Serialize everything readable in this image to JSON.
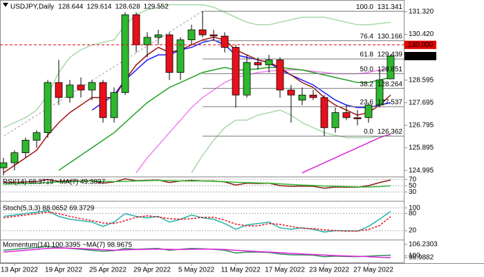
{
  "chart_data": [
    {
      "type": "candlestick",
      "title": "USDJPY,Daily",
      "categories": [
        null,
        "13 Apr 2022",
        null,
        null,
        null,
        "19 Apr 2022",
        null,
        null,
        null,
        "25 Apr 2022",
        null,
        null,
        null,
        "29 Apr 2022",
        null,
        null,
        null,
        "5 May 2022",
        null,
        null,
        null,
        "11 May 2022",
        null,
        null,
        null,
        "17 May 2022",
        null,
        null,
        null,
        "23 May 2022",
        null,
        null,
        null,
        "27 May 2022",
        null,
        null
      ],
      "open": [
        125.1,
        125.3,
        125.7,
        126.2,
        126.5,
        128.5,
        127.9,
        128.4,
        128.2,
        128.5,
        127.1,
        128.1,
        131.2,
        130.0,
        130.3,
        130.4,
        128.9,
        130.2,
        130.6,
        130.4,
        130.35,
        129.9,
        128.0,
        129.3,
        129.2,
        129.4,
        128.2,
        127.8,
        128.0,
        127.9,
        126.7,
        127.3,
        127.1,
        127.1,
        127.6,
        128.644
      ],
      "high": [
        125.5,
        125.8,
        126.3,
        126.6,
        128.6,
        129.4,
        128.6,
        128.7,
        128.6,
        128.6,
        128.3,
        131.3,
        131.3,
        130.5,
        130.6,
        130.5,
        130.3,
        130.8,
        131.341,
        130.6,
        130.5,
        130.0,
        129.6,
        129.5,
        129.6,
        129.5,
        128.4,
        128.3,
        128.2,
        128.0,
        127.5,
        127.6,
        127.4,
        127.7,
        129.0,
        129.614
      ],
      "low": [
        124.8,
        125.0,
        125.5,
        125.9,
        126.3,
        127.6,
        127.7,
        127.9,
        127.8,
        126.9,
        126.9,
        128.0,
        129.7,
        129.5,
        130.0,
        128.6,
        128.6,
        130.0,
        130.3,
        130.2,
        129.7,
        127.5,
        127.9,
        129.0,
        128.9,
        127.9,
        126.9,
        127.6,
        127.8,
        126.362,
        126.5,
        127.0,
        126.8,
        126.9,
        127.5,
        128.628
      ],
      "close": [
        125.3,
        125.7,
        126.2,
        126.5,
        128.5,
        127.9,
        128.4,
        128.2,
        128.5,
        127.1,
        128.1,
        131.2,
        130.0,
        130.3,
        130.4,
        128.9,
        130.2,
        130.6,
        130.4,
        130.35,
        129.9,
        128.0,
        129.3,
        129.2,
        129.4,
        128.2,
        128.0,
        128.0,
        127.9,
        126.7,
        127.3,
        127.1,
        127.05,
        127.6,
        128.6,
        129.552
      ],
      "up_color": "#2eb82e",
      "down_color": "#e8101a",
      "series": [
        {
          "color": "#a8d8a8",
          "values": [
            126.7,
            126.9,
            127.1,
            127.4,
            128.0,
            128.9,
            129.5,
            129.8,
            130.0,
            130.1,
            130.2,
            130.8,
            131.2,
            131.4,
            131.5,
            131.6,
            131.6,
            131.6,
            131.6,
            131.5,
            131.3,
            131.1,
            130.9,
            130.8,
            130.8,
            130.9,
            131.0,
            131.1,
            131.1,
            131.1,
            131.0,
            130.9,
            130.8,
            130.8,
            130.85,
            130.9
          ]
        },
        {
          "color": "#a8d8a8",
          "values": [
            null,
            null,
            null,
            null,
            null,
            null,
            null,
            null,
            null,
            null,
            null,
            null,
            null,
            null,
            null,
            null,
            null,
            124.9,
            125.6,
            126.2,
            126.7,
            127.0,
            127.0,
            127.2,
            127.3,
            127.4,
            127.2,
            126.9,
            126.7,
            126.5,
            126.4,
            126.3,
            126.3,
            126.3,
            126.35,
            126.4
          ]
        },
        {
          "color": "#ee82ee",
          "values": [
            null,
            null,
            null,
            null,
            null,
            null,
            null,
            null,
            null,
            null,
            null,
            null,
            124.9,
            125.5,
            126.0,
            126.5,
            127.0,
            127.5,
            127.9,
            128.2,
            128.5,
            128.7,
            128.8,
            128.9,
            128.95,
            129.0,
            129.0,
            129.0,
            128.95,
            128.9,
            128.85,
            128.85,
            128.85,
            128.9,
            129.0,
            129.05
          ]
        },
        {
          "color": "#dd22dd",
          "values": [
            null,
            null,
            null,
            null,
            null,
            null,
            null,
            null,
            null,
            null,
            null,
            null,
            null,
            null,
            null,
            null,
            null,
            null,
            null,
            null,
            null,
            null,
            null,
            null,
            null,
            null,
            null,
            124.9,
            125.1,
            125.3,
            125.5,
            125.7,
            125.9,
            126.1,
            126.3,
            126.45
          ]
        },
        {
          "color": "#22a022",
          "values": [
            null,
            null,
            null,
            null,
            null,
            125.0,
            125.3,
            125.6,
            125.9,
            126.2,
            126.5,
            126.9,
            127.3,
            127.7,
            128.0,
            128.3,
            128.5,
            128.7,
            128.9,
            129.0,
            129.1,
            129.0,
            129.0,
            129.05,
            129.1,
            129.1,
            129.05,
            129.0,
            128.9,
            128.8,
            128.7,
            128.6,
            128.5,
            128.5,
            128.6,
            128.7
          ]
        },
        {
          "color": "#1a1aff",
          "values": [
            null,
            null,
            null,
            null,
            null,
            null,
            null,
            null,
            127.4,
            127.7,
            128.0,
            128.6,
            129.0,
            129.4,
            129.6,
            129.6,
            129.8,
            129.9,
            130.1,
            130.2,
            130.0,
            129.6,
            129.5,
            129.4,
            129.3,
            129.0,
            128.8,
            128.6,
            128.4,
            128.1,
            127.8,
            127.6,
            127.5,
            127.5,
            127.6,
            127.7
          ]
        },
        {
          "color": "#a01010",
          "values": [
            124.9,
            125.2,
            125.5,
            125.8,
            126.4,
            126.9,
            127.3,
            127.6,
            127.9,
            127.9,
            127.9,
            128.6,
            129.2,
            129.6,
            129.9,
            129.7,
            129.8,
            130.0,
            130.2,
            130.3,
            130.2,
            129.8,
            129.6,
            129.4,
            129.3,
            129.1,
            128.8,
            128.5,
            128.3,
            127.9,
            127.6,
            127.4,
            127.2,
            127.3,
            127.6,
            128.0
          ]
        }
      ],
      "fib": [
        {
          "level": "100.0",
          "value": 131.341
        },
        {
          "level": "76.4",
          "value": 130.166
        },
        {
          "level": "61.8",
          "value": 129.439
        },
        {
          "level": "50.0",
          "value": 128.851
        },
        {
          "level": "38.2",
          "value": 128.264
        },
        {
          "level": "23.6",
          "value": 127.537
        },
        {
          "level": "0.0",
          "value": 126.362
        }
      ],
      "price_marks": [
        {
          "value": 130,
          "label": "130.000",
          "color": "#e00000"
        }
      ],
      "ylim": [
        124.75,
        131.65
      ],
      "yticks": [
        {
          "value": 131.32,
          "label": "131.320"
        },
        {
          "value": 130.42,
          "label": "130.420"
        },
        128.595,
        127.695,
        126.795,
        125.895,
        124.995
      ]
    },
    {
      "type": "line",
      "title": "RSI(14) 68.3719 ~MA(7) 49.3837",
      "series": [
        {
          "color": "#8b1a1a",
          "values": [
            60,
            61,
            62,
            63,
            70,
            64,
            66,
            65,
            66,
            58,
            62,
            72,
            66,
            67,
            68,
            60,
            65,
            67,
            65,
            65,
            62,
            52,
            58,
            57,
            58,
            50,
            48,
            49,
            48,
            42,
            46,
            45,
            45,
            50,
            60,
            68.3719
          ]
        },
        {
          "color": "#2eb82e",
          "values": [
            55,
            56,
            57,
            58,
            60,
            62,
            63,
            64,
            65,
            64,
            63,
            64,
            65,
            66,
            67,
            66,
            65,
            65,
            65,
            64,
            63,
            61,
            60,
            59,
            58,
            56,
            54,
            52,
            51,
            49,
            48,
            47,
            46,
            46,
            47,
            49.3837
          ]
        }
      ],
      "level_lines": true,
      "ylim": [
        17,
        77
      ],
      "yticks": [
        70,
        50,
        30
      ]
    },
    {
      "type": "line",
      "title": "Stoch(5,3,3) 88.0652 69.3729",
      "series": [
        {
          "color": "#20b2aa",
          "values": [
            70,
            75,
            80,
            85,
            90,
            70,
            60,
            55,
            50,
            35,
            50,
            80,
            70,
            65,
            70,
            50,
            60,
            75,
            65,
            60,
            45,
            25,
            40,
            45,
            50,
            30,
            25,
            30,
            25,
            15,
            20,
            20,
            18,
            35,
            60,
            88.0652
          ]
        },
        {
          "color": "#e8101a",
          "dashed": true,
          "values": [
            65,
            70,
            75,
            80,
            85,
            80,
            70,
            62,
            55,
            47,
            45,
            55,
            67,
            72,
            68,
            62,
            60,
            62,
            67,
            67,
            57,
            43,
            37,
            37,
            45,
            42,
            35,
            28,
            27,
            23,
            20,
            18,
            19,
            24,
            38,
            69.3729
          ]
        }
      ],
      "level_lines": true,
      "ylim": [
        -9,
        115
      ],
      "yticks": [
        100,
        80,
        20
      ]
    },
    {
      "type": "line",
      "title": "Momentum(14) 100.3395 ~MA(7) 98.9675",
      "series": [
        {
          "color": "#2e8b57",
          "values": [
            103,
            103.5,
            104,
            104.5,
            105,
            104.5,
            104,
            103.5,
            103,
            102.5,
            102.8,
            104,
            103.5,
            103.8,
            104,
            103,
            103.5,
            104,
            103.8,
            103.5,
            103,
            101.5,
            102,
            102,
            101.8,
            101,
            100.5,
            100.5,
            100.3,
            99.5,
            99.8,
            99.6,
            99.5,
            99.8,
            100.1,
            100.3395
          ]
        },
        {
          "color": "#dd22dd",
          "values": [
            102,
            102.5,
            103,
            103.5,
            104,
            104.2,
            104.1,
            103.9,
            103.6,
            103.3,
            103,
            103.2,
            103.4,
            103.5,
            103.6,
            103.5,
            103.4,
            103.5,
            103.6,
            103.6,
            103.4,
            103,
            102.6,
            102.3,
            102,
            101.7,
            101.3,
            101,
            100.7,
            100.4,
            100.1,
            99.9,
            99.7,
            99.5,
            99.2,
            98.9675
          ]
        }
      ],
      "level_lines": false,
      "ylim": [
        96,
        108.4
      ],
      "yticks": [
        106.2303,
        100,
        98.9882
      ]
    }
  ]
}
